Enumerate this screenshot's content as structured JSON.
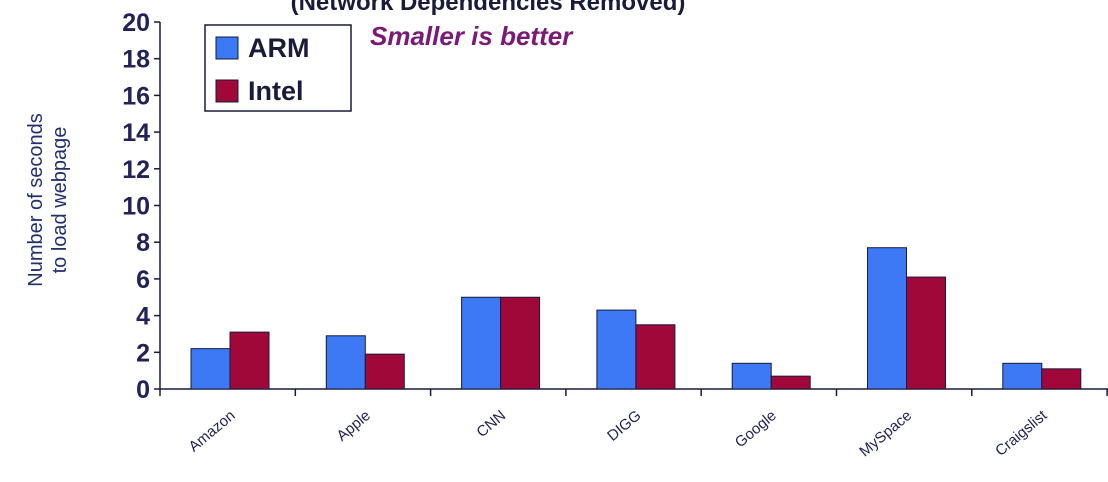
{
  "chart_data": {
    "type": "bar",
    "title": "(Network Dependencies Removed)",
    "annotation": "Smaller is better",
    "ylabel_lines": [
      "Number of seconds",
      "to load webpage"
    ],
    "xlabel": "",
    "ylim": [
      0,
      20
    ],
    "yticks": [
      0,
      2,
      4,
      6,
      8,
      10,
      12,
      14,
      16,
      18,
      20
    ],
    "categories": [
      "Amazon",
      "Apple",
      "CNN",
      "DIGG",
      "Google",
      "MySpace",
      "Craigslist"
    ],
    "series": [
      {
        "name": "ARM",
        "color": "#3d78f5",
        "values": [
          2.2,
          2.9,
          5.0,
          4.3,
          1.4,
          7.7,
          1.4
        ]
      },
      {
        "name": "Intel",
        "color": "#a0083a",
        "values": [
          3.1,
          1.9,
          5.0,
          3.5,
          0.7,
          6.1,
          1.1
        ]
      }
    ],
    "legend_position": "top-left",
    "grid": false,
    "colors": {
      "axis": "#1a1a3a",
      "annotation": "#7a1a78",
      "text": "#22225a"
    }
  }
}
